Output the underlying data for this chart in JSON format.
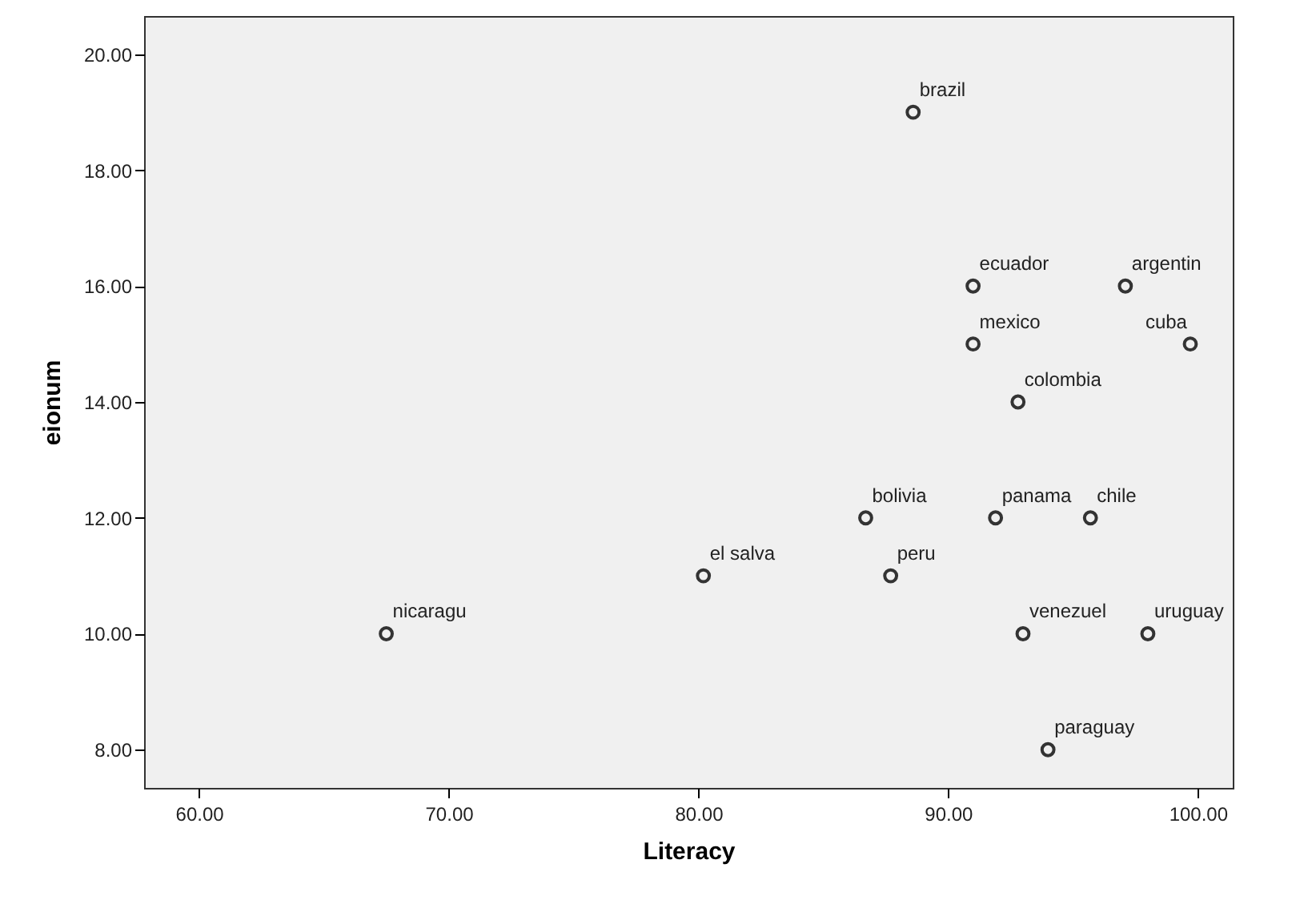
{
  "chart_data": {
    "type": "scatter",
    "xlabel": "Literacy",
    "ylabel": "eionum",
    "x": [
      88.6,
      91.0,
      97.1,
      91.0,
      99.7,
      92.8,
      86.7,
      91.9,
      95.7,
      80.2,
      87.7,
      67.5,
      93.0,
      98.0,
      94.0
    ],
    "series": [
      {
        "color": "#333333",
        "values": [
          19,
          16,
          16,
          15,
          15,
          14,
          12,
          12,
          12,
          11,
          11,
          10,
          10,
          10,
          8
        ]
      }
    ],
    "annotations": [
      {
        "text": "brazil",
        "x": 88.6,
        "y": 19
      },
      {
        "text": "ecuador",
        "x": 91.0,
        "y": 16
      },
      {
        "text": "argentin",
        "x": 97.1,
        "y": 16
      },
      {
        "text": "mexico",
        "x": 91.0,
        "y": 15
      },
      {
        "text": "cuba",
        "x": 99.7,
        "y": 15
      },
      {
        "text": "colombia",
        "x": 92.8,
        "y": 14
      },
      {
        "text": "bolivia",
        "x": 86.7,
        "y": 12
      },
      {
        "text": "panama",
        "x": 91.9,
        "y": 12
      },
      {
        "text": "chile",
        "x": 95.7,
        "y": 12
      },
      {
        "text": "el salva",
        "x": 80.2,
        "y": 11
      },
      {
        "text": "peru",
        "x": 87.7,
        "y": 11
      },
      {
        "text": "nicaragu",
        "x": 67.5,
        "y": 10
      },
      {
        "text": "venezuel",
        "x": 93.0,
        "y": 10
      },
      {
        "text": "uruguay",
        "x": 98.0,
        "y": 10
      },
      {
        "text": "paraguay",
        "x": 94.0,
        "y": 8
      }
    ],
    "xlim": [
      57.8,
      101.4
    ],
    "xticks": [
      {
        "value": 60,
        "label": "60.00"
      },
      {
        "value": 70,
        "label": "70.00"
      },
      {
        "value": 80,
        "label": "80.00"
      },
      {
        "value": 90,
        "label": "90.00"
      },
      {
        "value": 100,
        "label": "100.00"
      }
    ],
    "ylim": [
      7.34,
      20.66
    ],
    "yticks": [
      {
        "value": 8,
        "label": "8.00"
      },
      {
        "value": 10,
        "label": "10.00"
      },
      {
        "value": 12,
        "label": "12.00"
      },
      {
        "value": 14,
        "label": "14.00"
      },
      {
        "value": 16,
        "label": "16.00"
      },
      {
        "value": 18,
        "label": "18.00"
      },
      {
        "value": 20,
        "label": "20.00"
      }
    ],
    "marker": "circle",
    "grid": false
  }
}
